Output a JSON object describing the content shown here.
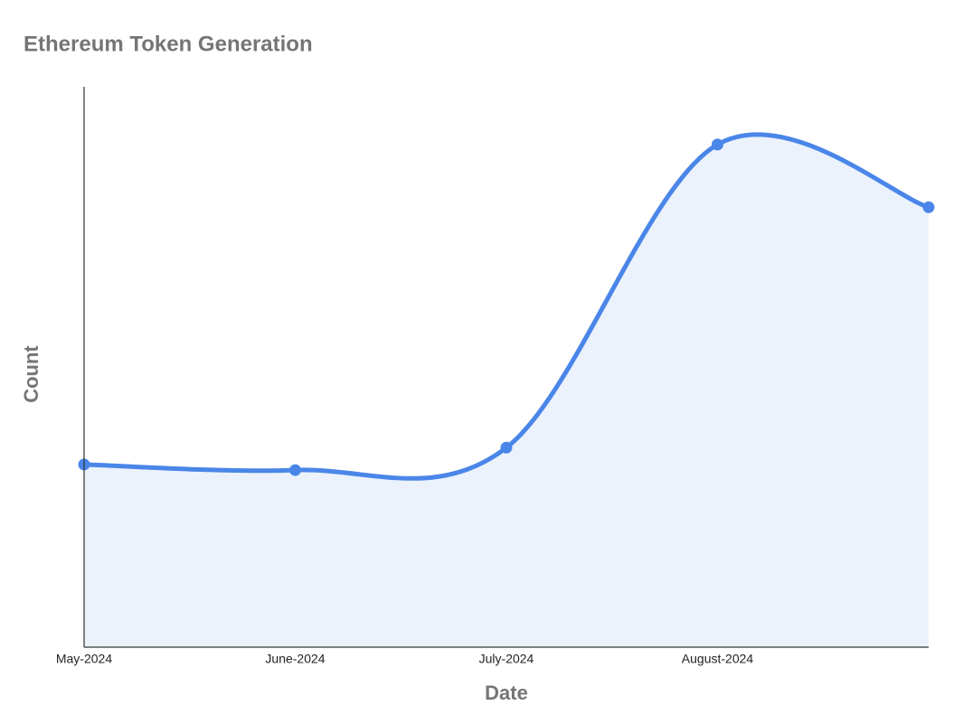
{
  "chart_data": {
    "type": "line",
    "title": "Ethereum Token Generation",
    "x_label": "Date",
    "y_label": "Count",
    "categories": [
      "May-2024",
      "June-2024",
      "July-2024",
      "August-2024",
      null
    ],
    "series": [
      {
        "name": "Count",
        "color": "#4a86e8",
        "values": [
          32.6,
          31.6,
          35.6,
          89.7,
          78.5
        ]
      }
    ],
    "ylim": [
      0,
      100
    ],
    "area": true,
    "smooth": true
  }
}
